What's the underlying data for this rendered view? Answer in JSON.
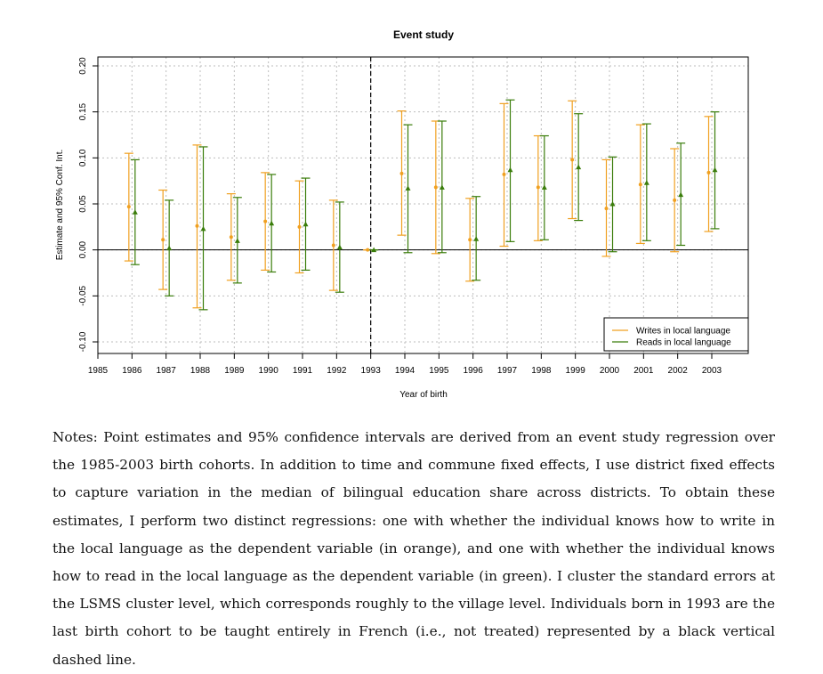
{
  "chart_data": {
    "type": "scatter",
    "title": "Event study",
    "xlabel": "Year of birth",
    "ylabel": "Estimate and 95% Conf. Int.",
    "xlim": [
      1985,
      2003
    ],
    "ylim": [
      -0.1,
      0.2
    ],
    "x_ticks": [
      "1985",
      "1986",
      "1987",
      "1988",
      "1989",
      "1990",
      "1991",
      "1992",
      "1993",
      "1994",
      "1995",
      "1996",
      "1997",
      "1998",
      "1999",
      "2000",
      "2001",
      "2002",
      "2003"
    ],
    "y_ticks": [
      "-0.10",
      "-0.05",
      "0.00",
      "0.05",
      "0.10",
      "0.15",
      "0.20"
    ],
    "grid": true,
    "reference_vline": 1993,
    "legend_position": "bottom-right",
    "series": [
      {
        "name": "Writes in local language",
        "color": "#F0A020",
        "marker": "circle",
        "x": [
          1986,
          1987,
          1988,
          1989,
          1990,
          1991,
          1992,
          1993,
          1994,
          1995,
          1996,
          1997,
          1998,
          1999,
          2000,
          2001,
          2002,
          2003
        ],
        "estimate": [
          0.047,
          0.011,
          0.026,
          0.014,
          0.031,
          0.025,
          0.005,
          0.0,
          0.083,
          0.068,
          0.011,
          0.082,
          0.068,
          0.098,
          0.045,
          0.071,
          0.054,
          0.084
        ],
        "ci_low": [
          -0.012,
          -0.043,
          -0.063,
          -0.033,
          -0.022,
          -0.025,
          -0.044,
          0.0,
          0.016,
          -0.004,
          -0.034,
          0.004,
          0.01,
          0.034,
          -0.007,
          0.007,
          -0.002,
          0.02
        ],
        "ci_high": [
          0.105,
          0.065,
          0.114,
          0.061,
          0.084,
          0.075,
          0.054,
          0.0,
          0.151,
          0.14,
          0.056,
          0.159,
          0.124,
          0.162,
          0.098,
          0.136,
          0.11,
          0.145
        ]
      },
      {
        "name": "Reads in local language",
        "color": "#3A7D0A",
        "marker": "triangle",
        "x": [
          1986,
          1987,
          1988,
          1989,
          1990,
          1991,
          1992,
          1993,
          1994,
          1995,
          1996,
          1997,
          1998,
          1999,
          2000,
          2001,
          2002,
          2003
        ],
        "estimate": [
          0.041,
          0.002,
          0.023,
          0.01,
          0.029,
          0.028,
          0.003,
          0.0,
          0.067,
          0.068,
          0.012,
          0.087,
          0.068,
          0.09,
          0.05,
          0.073,
          0.06,
          0.087
        ],
        "ci_low": [
          -0.016,
          -0.05,
          -0.065,
          -0.036,
          -0.024,
          -0.022,
          -0.046,
          0.0,
          -0.003,
          -0.003,
          -0.033,
          0.009,
          0.011,
          0.032,
          -0.002,
          0.01,
          0.005,
          0.023
        ],
        "ci_high": [
          0.098,
          0.054,
          0.112,
          0.057,
          0.082,
          0.078,
          0.052,
          0.0,
          0.136,
          0.14,
          0.058,
          0.163,
          0.124,
          0.148,
          0.101,
          0.137,
          0.116,
          0.15
        ]
      }
    ]
  },
  "notes": "Notes: Point estimates and 95% confidence intervals are derived from an event study regression over the 1985-2003 birth cohorts. In addition to time and commune fixed effects, I use district fixed effects to capture variation in the median of bilingual education share across districts. To obtain these estimates, I perform two distinct regressions: one with whether the individual knows how to write in the local language as the dependent variable (in orange), and one with whether the individual knows how to read in the local language as the dependent variable (in green). I cluster the standard errors at the LSMS cluster level, which corresponds roughly to the village level. Individuals born in 1993 are the last birth cohort to be taught entirely in French (i.e., not treated) represented by a black vertical dashed line."
}
